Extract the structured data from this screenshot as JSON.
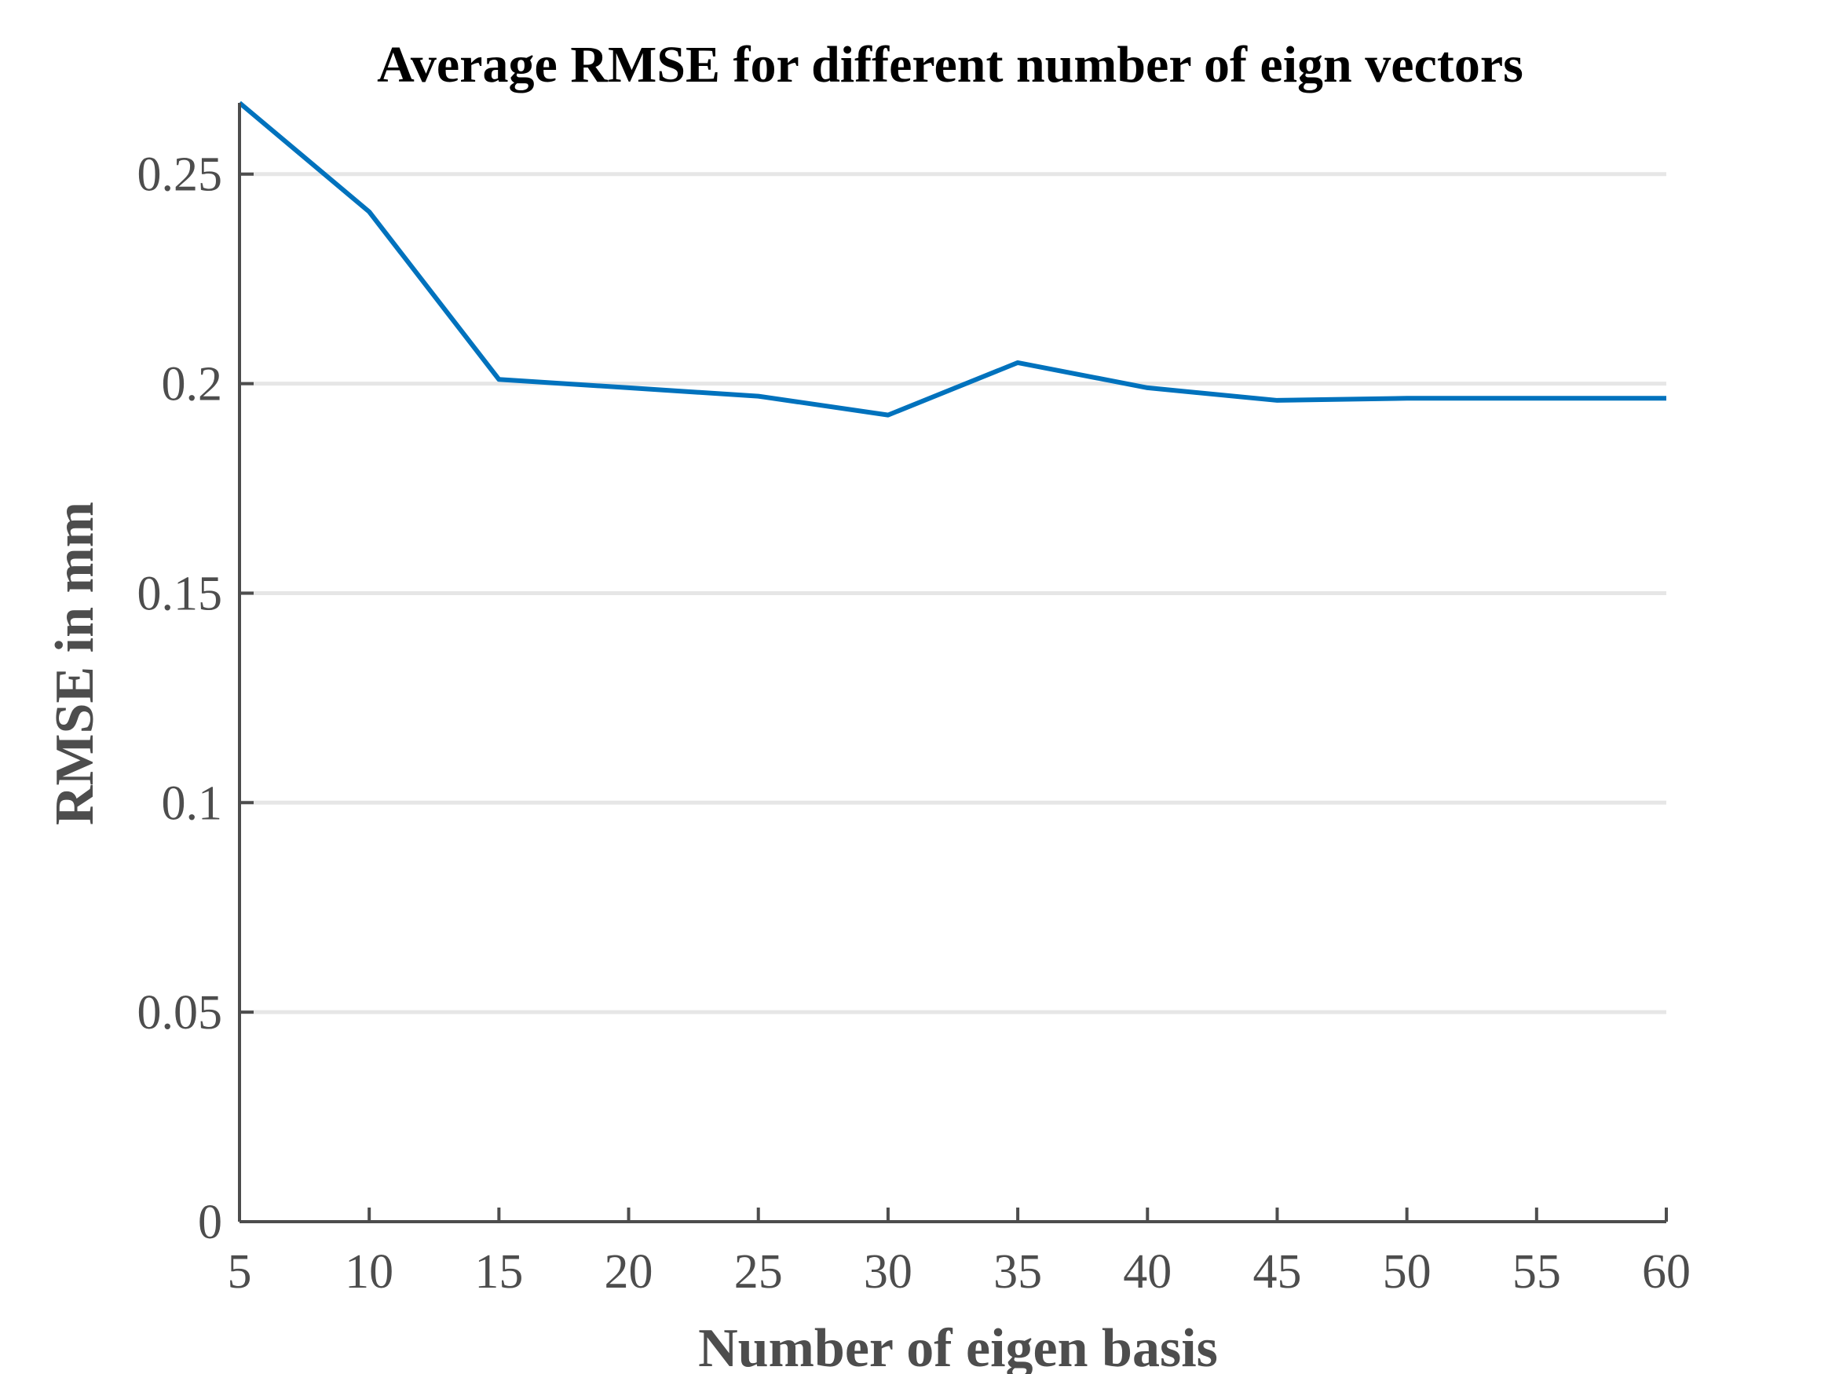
{
  "chart_data": {
    "type": "line",
    "title": "Average RMSE for different number of eign vectors",
    "xlabel": "Number of eigen basis",
    "ylabel": "RMSE in mm",
    "xlim": [
      5,
      60
    ],
    "ylim": [
      0,
      0.267
    ],
    "x_ticks": [
      5,
      10,
      15,
      20,
      25,
      30,
      35,
      40,
      45,
      50,
      55,
      60
    ],
    "x_tick_labels": [
      "5",
      "10",
      "15",
      "20",
      "25",
      "30",
      "35",
      "40",
      "45",
      "50",
      "55",
      "60"
    ],
    "y_ticks": [
      0,
      0.05,
      0.1,
      0.15,
      0.2,
      0.25
    ],
    "y_tick_labels": [
      "0",
      "0.05",
      "0.1",
      "0.15",
      "0.2",
      "0.25"
    ],
    "grid": "horizontal",
    "series": [
      {
        "color": "#0072bd",
        "x": [
          5,
          10,
          15,
          20,
          25,
          30,
          35,
          40,
          45,
          50,
          55,
          60
        ],
        "y": [
          0.267,
          0.241,
          0.201,
          0.199,
          0.197,
          0.1925,
          0.205,
          0.199,
          0.196,
          0.1965,
          0.1965,
          0.1965
        ]
      }
    ]
  }
}
